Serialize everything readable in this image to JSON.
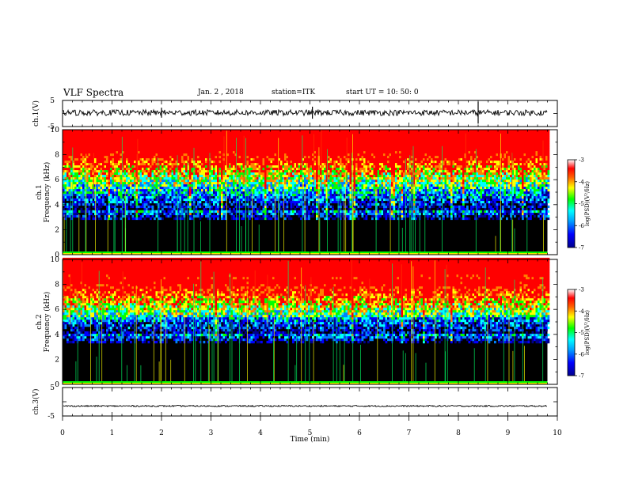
{
  "header": {
    "title": "VLF Spectra",
    "date": "Jan. 2 , 2018",
    "station": "station=ITK",
    "start": "start UT =  10: 50: 0"
  },
  "chart_data": {
    "type": "heatmap",
    "x_axis": {
      "label": "Time (min)",
      "range": [
        0,
        10
      ],
      "ticks": [
        "0",
        "1",
        "2",
        "3",
        "4",
        "5",
        "6",
        "7",
        "8",
        "9",
        "10"
      ]
    },
    "panels": [
      {
        "id": "ch1-waveform",
        "type": "line",
        "ylabel": "ch.1(V)",
        "ylim": [
          -5,
          5
        ],
        "yticks": [
          "5",
          "-5"
        ],
        "approx_level": 0.3,
        "data_end_min": 9.8
      },
      {
        "id": "ch1-spectrogram",
        "type": "heatmap",
        "ylabel_line1": "ch.1",
        "ylabel_line2": "Frequency (kHz)",
        "ylim": [
          0,
          10
        ],
        "yticks": [
          "0",
          "2",
          "4",
          "6",
          "8",
          "10"
        ],
        "data_end_min": 9.8,
        "colorbar": {
          "label": "log(PSD)(V²/Hz)",
          "range": [
            -7,
            -3
          ],
          "ticks": [
            "-3",
            "-4",
            "-5",
            "-6",
            "-7"
          ]
        }
      },
      {
        "id": "ch2-spectrogram",
        "type": "heatmap",
        "ylabel_line1": "ch.2",
        "ylabel_line2": "Frequency (kHz)",
        "ylim": [
          0,
          10
        ],
        "yticks": [
          "0",
          "2",
          "4",
          "6",
          "8",
          "10"
        ],
        "data_end_min": 9.8,
        "colorbar": {
          "label": "log(PSD)(V²/Hz)",
          "range": [
            -7,
            -3
          ],
          "ticks": [
            "-3",
            "-4",
            "-5",
            "-6",
            "-7"
          ]
        }
      },
      {
        "id": "ch3-waveform",
        "type": "line",
        "ylabel": "ch.3(V)",
        "ylim": [
          -5,
          5
        ],
        "yticks": [
          "5",
          "-5"
        ],
        "approx_level": -1.5,
        "data_end_min": 9.8
      }
    ],
    "colormap": [
      "#000000",
      "#00008c",
      "#0000ff",
      "#0080ff",
      "#00ffff",
      "#00ff00",
      "#ffff00",
      "#ff8000",
      "#ff0000",
      "#ffffff"
    ]
  }
}
